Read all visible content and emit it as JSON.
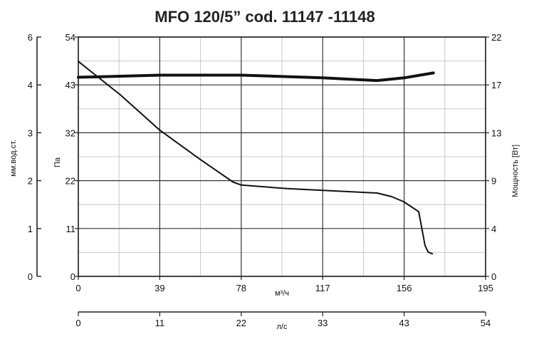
{
  "chart_data": {
    "type": "line",
    "title": "MFO 120/5” cod. 11147 -11148",
    "x_axis": {
      "label": "м³/ч",
      "ticks": [
        0,
        39,
        78,
        117,
        156,
        195
      ],
      "range": [
        0,
        195
      ]
    },
    "x_axis_secondary": {
      "label": "л/с",
      "tick_labels": [
        "0",
        "11",
        "22",
        "33",
        "43",
        "54"
      ],
      "range": [
        0,
        54
      ]
    },
    "y_axis_left_outer": {
      "label": "мм.вод.ст.",
      "ticks": [
        0,
        1,
        2,
        3,
        4,
        6
      ],
      "tick_labels": [
        "0",
        "1",
        "2",
        "3",
        "4",
        "6"
      ]
    },
    "y_axis_left": {
      "label": "Па",
      "ticks": [
        0,
        11,
        22,
        32,
        43,
        54
      ],
      "range": [
        0,
        54
      ]
    },
    "y_axis_right": {
      "label": "Мощность [Вт]",
      "tick_labels": [
        "0",
        "4",
        "9",
        "13",
        "17",
        "22"
      ],
      "range": [
        0,
        22
      ]
    },
    "grid": true,
    "series": [
      {
        "axis": "left",
        "points": [
          [
            0,
            48.5
          ],
          [
            20,
            41
          ],
          [
            39,
            33
          ],
          [
            58,
            26.5
          ],
          [
            74,
            21.3
          ],
          [
            78,
            20.6
          ],
          [
            100,
            19.8
          ],
          [
            117,
            19.4
          ],
          [
            143,
            18.8
          ],
          [
            150,
            18
          ],
          [
            156,
            16.8
          ],
          [
            163,
            14.6
          ],
          [
            166,
            7
          ],
          [
            167.5,
            5.5
          ],
          [
            169.5,
            5.1
          ]
        ]
      },
      {
        "axis": "right",
        "points": [
          [
            0,
            18.3
          ],
          [
            20,
            18.4
          ],
          [
            39,
            18.5
          ],
          [
            78,
            18.5
          ],
          [
            117,
            18.25
          ],
          [
            143,
            18.0
          ],
          [
            156,
            18.25
          ],
          [
            170,
            18.7
          ]
        ]
      }
    ]
  }
}
